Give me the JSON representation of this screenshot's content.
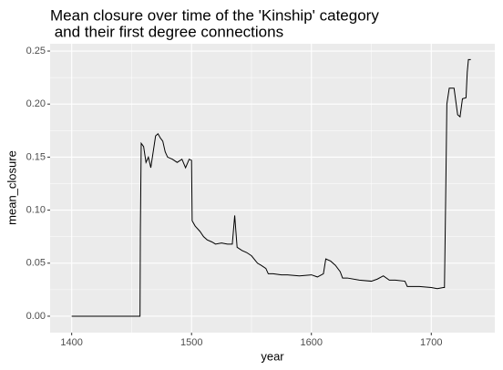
{
  "chart_data": {
    "type": "line",
    "title": [
      "Mean closure over time of the 'Kinship' category",
      " and their first degree connections"
    ],
    "x_label": "year",
    "y_label": "mean_closure",
    "x": [
      1400,
      1457,
      1457.3,
      1458,
      1460,
      1462,
      1464,
      1466,
      1468,
      1470,
      1472,
      1474,
      1476,
      1478,
      1480,
      1484,
      1488,
      1492,
      1495,
      1498,
      1500,
      1500.5,
      1503,
      1507,
      1510,
      1513,
      1517,
      1520,
      1525,
      1530,
      1534,
      1536,
      1537,
      1538,
      1542,
      1546,
      1550,
      1555,
      1558,
      1562,
      1564,
      1568,
      1575,
      1580,
      1590,
      1600,
      1605,
      1610,
      1612,
      1616,
      1620,
      1624,
      1626,
      1630,
      1640,
      1650,
      1655,
      1660,
      1665,
      1670,
      1678,
      1680,
      1690,
      1700,
      1705,
      1710,
      1711,
      1712,
      1713,
      1715,
      1719,
      1722,
      1724,
      1726,
      1729,
      1730,
      1731,
      1733
    ],
    "values": [
      0,
      0,
      0.08,
      0.163,
      0.16,
      0.145,
      0.15,
      0.14,
      0.155,
      0.17,
      0.172,
      0.168,
      0.165,
      0.155,
      0.15,
      0.148,
      0.145,
      0.148,
      0.14,
      0.148,
      0.147,
      0.09,
      0.085,
      0.08,
      0.075,
      0.072,
      0.07,
      0.068,
      0.069,
      0.068,
      0.068,
      0.095,
      0.08,
      0.065,
      0.062,
      0.06,
      0.057,
      0.05,
      0.048,
      0.045,
      0.04,
      0.04,
      0.039,
      0.039,
      0.038,
      0.039,
      0.037,
      0.04,
      0.054,
      0.052,
      0.048,
      0.042,
      0.036,
      0.036,
      0.034,
      0.033,
      0.035,
      0.038,
      0.034,
      0.034,
      0.033,
      0.028,
      0.028,
      0.027,
      0.026,
      0.027,
      0.027,
      0.11,
      0.2,
      0.215,
      0.215,
      0.19,
      0.188,
      0.205,
      0.206,
      0.23,
      0.242,
      0.242
    ],
    "color": "#000000",
    "xlim": [
      1382,
      1753
    ],
    "xticks": [
      1400,
      1500,
      1600,
      1700
    ],
    "xminor": [
      1450,
      1550,
      1650
    ],
    "ylim": [
      -0.0155,
      0.2569
    ],
    "yticks": [
      {
        "value": 0,
        "label": "0.00"
      },
      {
        "value": 0.05,
        "label": "0.05"
      },
      {
        "value": 0.1,
        "label": "0.10"
      },
      {
        "value": 0.15,
        "label": "0.15"
      },
      {
        "value": 0.2,
        "label": "0.20"
      },
      {
        "value": 0.25,
        "label": "0.25"
      }
    ],
    "yminor": [
      0.025,
      0.075,
      0.125,
      0.175,
      0.225
    ],
    "grid": true
  }
}
